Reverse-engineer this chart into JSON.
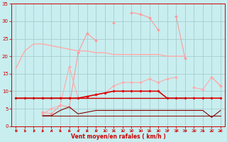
{
  "background_color": "#c8eef0",
  "grid_color": "#aacccc",
  "xlabel": "Vent moyen/en rafales ( km/h )",
  "xlabel_color": "#cc0000",
  "tick_color": "#cc0000",
  "arrow_color": "#cc0000",
  "xlim": [
    -0.5,
    23.5
  ],
  "ylim": [
    0,
    35
  ],
  "yticks": [
    0,
    5,
    10,
    15,
    20,
    25,
    30,
    35
  ],
  "xticks": [
    0,
    1,
    2,
    3,
    4,
    5,
    6,
    7,
    8,
    9,
    10,
    11,
    12,
    13,
    14,
    15,
    16,
    17,
    18,
    19,
    20,
    21,
    22,
    23
  ],
  "series": [
    {
      "name": "pink_gust_line",
      "color": "#ff9999",
      "linewidth": 0.8,
      "marker": "D",
      "markersize": 2.0,
      "y": [
        null,
        null,
        null,
        4.0,
        3.5,
        6.0,
        5.5,
        21.0,
        26.5,
        24.5,
        null,
        29.5,
        null,
        32.5,
        32.0,
        31.0,
        27.5,
        null,
        31.5,
        19.5,
        null,
        null,
        14.0,
        11.5
      ]
    },
    {
      "name": "pink_descending_line",
      "color": "#ffaaaa",
      "linewidth": 1.0,
      "marker": null,
      "markersize": 0,
      "y": [
        16.5,
        21.5,
        23.5,
        23.5,
        23.0,
        22.5,
        22.0,
        21.5,
        21.5,
        21.0,
        21.0,
        20.5,
        20.5,
        20.5,
        20.5,
        20.5,
        20.5,
        20.0,
        20.0,
        20.0,
        null,
        null,
        null,
        null
      ]
    },
    {
      "name": "pink_medium_marker_line",
      "color": "#ffaaaa",
      "linewidth": 0.8,
      "marker": "D",
      "markersize": 2.0,
      "y": [
        null,
        null,
        null,
        3.5,
        5.0,
        6.0,
        17.0,
        8.0,
        8.5,
        9.0,
        9.5,
        11.5,
        12.5,
        12.5,
        12.5,
        13.5,
        12.5,
        13.5,
        14.0,
        null,
        11.0,
        10.5,
        14.0,
        11.5
      ]
    },
    {
      "name": "red_flat_marker_line",
      "color": "#dd0000",
      "linewidth": 1.2,
      "marker": "D",
      "markersize": 1.8,
      "y": [
        8.0,
        8.0,
        8.0,
        8.0,
        8.0,
        8.0,
        8.0,
        8.0,
        8.5,
        9.0,
        9.5,
        10.0,
        10.0,
        10.0,
        10.0,
        10.0,
        10.0,
        8.0,
        8.0,
        8.0,
        8.0,
        8.0,
        8.0,
        8.0
      ]
    },
    {
      "name": "red_flat_plain_line",
      "color": "#cc0000",
      "linewidth": 1.0,
      "marker": null,
      "markersize": 0,
      "y": [
        8.0,
        8.0,
        8.0,
        8.0,
        8.0,
        8.0,
        8.0,
        8.0,
        8.0,
        8.0,
        8.0,
        8.0,
        8.0,
        8.0,
        8.0,
        8.0,
        8.0,
        8.0,
        8.0,
        8.0,
        null,
        null,
        null,
        null
      ]
    },
    {
      "name": "dark_red_varying_bottom",
      "color": "#880000",
      "linewidth": 0.8,
      "marker": null,
      "markersize": 0,
      "y": [
        null,
        null,
        null,
        3.0,
        3.0,
        4.5,
        5.5,
        3.5,
        4.0,
        4.5,
        4.5,
        4.5,
        4.5,
        4.5,
        4.5,
        4.5,
        4.5,
        4.5,
        4.5,
        4.5,
        4.5,
        4.5,
        2.5,
        4.5
      ]
    },
    {
      "name": "dark_red_flat_bottom",
      "color": "#880000",
      "linewidth": 0.7,
      "marker": null,
      "markersize": 0,
      "y": [
        null,
        null,
        null,
        3.0,
        3.0,
        3.0,
        3.0,
        3.0,
        3.0,
        3.0,
        3.0,
        3.0,
        3.0,
        3.0,
        3.0,
        3.0,
        3.0,
        3.0,
        3.0,
        3.0,
        3.0,
        3.0,
        3.0,
        3.0
      ]
    }
  ],
  "wind_arrows": {
    "angles_deg": [
      225,
      225,
      225,
      200,
      180,
      180,
      180,
      180,
      180,
      180,
      180,
      180,
      180,
      180,
      180,
      180,
      180,
      225,
      225,
      225,
      225,
      225,
      180,
      180
    ]
  }
}
